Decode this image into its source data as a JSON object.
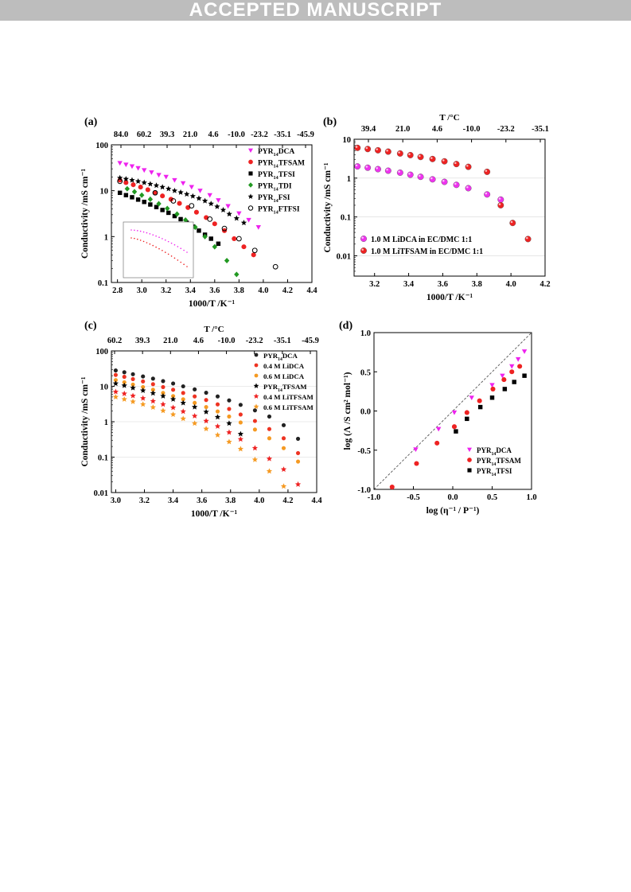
{
  "banner": "ACCEPTED MANUSCRIPT",
  "chart_data": [
    {
      "id": "a",
      "type": "scatter",
      "panel_label": "(a)",
      "xlabel": "1000/T /K⁻¹",
      "ylabel": "Conductivity /mS cm⁻¹",
      "xlim": [
        2.75,
        4.4
      ],
      "ylim": [
        0.1,
        100
      ],
      "yscale": "log",
      "x_ticks": [
        "2.8",
        "3.0",
        "3.2",
        "3.4",
        "3.6",
        "3.8",
        "4.0",
        "4.2",
        "4.4"
      ],
      "x_tick_values": [
        2.8,
        3.0,
        3.2,
        3.4,
        3.6,
        3.8,
        4.0,
        4.2,
        4.4
      ],
      "y_ticks": [
        "0.1",
        "1",
        "10",
        "100"
      ],
      "y_tick_values": [
        0.1,
        1,
        10,
        100
      ],
      "top_axis_label": "",
      "top_ticks": [
        "84.0",
        "60.2",
        "39.3",
        "21.0",
        "4.6",
        "-10.0",
        "-23.2",
        "-35.1",
        "-45.9"
      ],
      "legend_position": "top-right",
      "series": [
        {
          "name": "PYR14DCA",
          "label_prefix": "PYR",
          "label_sub": "14",
          "label_suffix": "DCA",
          "marker": "triangle",
          "color": "#ee22ee",
          "x": [
            2.82,
            2.87,
            2.92,
            2.97,
            3.02,
            3.08,
            3.14,
            3.2,
            3.27,
            3.34,
            3.41,
            3.48,
            3.56,
            3.63,
            3.71,
            3.8,
            3.88,
            3.96
          ],
          "y": [
            40,
            37,
            34,
            31,
            28,
            25,
            22,
            20,
            17,
            14.5,
            12,
            10,
            8,
            6.2,
            4.6,
            3.2,
            2.3,
            1.6
          ]
        },
        {
          "name": "PYR14TFSAM",
          "label_prefix": "PYR",
          "label_sub": "14",
          "label_suffix": "TFSAM",
          "marker": "circle",
          "color": "#ee2222",
          "x": [
            2.82,
            2.87,
            2.93,
            2.99,
            3.05,
            3.11,
            3.17,
            3.24,
            3.31,
            3.38,
            3.45,
            3.53,
            3.6,
            3.68,
            3.76,
            3.84,
            3.92
          ],
          "y": [
            17,
            15,
            13.5,
            12,
            10.5,
            9,
            7.7,
            6.5,
            5.3,
            4.3,
            3.4,
            2.6,
            1.9,
            1.35,
            0.9,
            0.6,
            0.4
          ]
        },
        {
          "name": "PYR14TFSI",
          "label_prefix": "PYR",
          "label_sub": "14",
          "label_suffix": "TFSI",
          "marker": "square",
          "color": "#000000",
          "x": [
            2.82,
            2.87,
            2.92,
            2.97,
            3.02,
            3.07,
            3.12,
            3.17,
            3.22,
            3.27,
            3.32,
            3.37,
            3.42,
            3.47,
            3.52,
            3.57,
            3.63
          ],
          "y": [
            9,
            8,
            7.2,
            6.4,
            5.7,
            5,
            4.4,
            3.8,
            3.3,
            2.8,
            2.4,
            2.0,
            1.65,
            1.35,
            1.1,
            0.9,
            0.7
          ]
        },
        {
          "name": "PYR14TDI",
          "label_prefix": "PYR",
          "label_sub": "14",
          "label_suffix": "TDI",
          "marker": "diamond",
          "color": "#229922",
          "x": [
            2.88,
            2.94,
            3.0,
            3.07,
            3.14,
            3.21,
            3.29,
            3.36,
            3.44,
            3.52,
            3.6,
            3.7,
            3.78
          ],
          "y": [
            11,
            9.5,
            8,
            6.5,
            5.2,
            4.1,
            3.1,
            2.3,
            1.6,
            1.0,
            0.6,
            0.3,
            0.15
          ]
        },
        {
          "name": "PYR14FSI",
          "label_prefix": "PYR",
          "label_sub": "14",
          "label_suffix": "FSI",
          "marker": "star",
          "color": "#000000",
          "x": [
            2.82,
            2.87,
            2.92,
            2.97,
            3.02,
            3.07,
            3.12,
            3.17,
            3.22,
            3.27,
            3.32,
            3.37,
            3.42,
            3.47,
            3.52,
            3.57,
            3.62,
            3.67,
            3.72,
            3.78,
            3.84
          ],
          "y": [
            19,
            18,
            17,
            16,
            15,
            14,
            13,
            12,
            11,
            10,
            9.2,
            8.4,
            7.6,
            6.8,
            6,
            5.2,
            4.5,
            3.8,
            3.1,
            2.5,
            2.0
          ]
        },
        {
          "name": "PYR14FTFSI",
          "label_prefix": "PYR",
          "label_sub": "14",
          "label_suffix": "FTFSI",
          "marker": "open-circle",
          "color": "#000000",
          "x": [
            2.82,
            3.11,
            3.26,
            3.41,
            3.56,
            3.68,
            3.8,
            3.93,
            4.1
          ],
          "y": [
            16,
            9,
            6,
            4.7,
            2.4,
            1.5,
            0.9,
            0.5,
            0.22
          ]
        }
      ]
    },
    {
      "id": "b",
      "type": "scatter",
      "panel_label": "(b)",
      "xlabel": "1000/T /K⁻¹",
      "ylabel": "Conductivity /mS cm⁻¹",
      "xlim": [
        3.08,
        4.2
      ],
      "ylim": [
        0.003,
        10
      ],
      "yscale": "log",
      "x_ticks": [
        "3.2",
        "3.4",
        "3.6",
        "3.8",
        "4.0",
        "4.2"
      ],
      "x_tick_values": [
        3.2,
        3.4,
        3.6,
        3.8,
        4.0,
        4.2
      ],
      "y_ticks": [
        "0.01",
        "0.1",
        "1",
        "10"
      ],
      "y_tick_values": [
        0.01,
        0.1,
        1,
        10
      ],
      "top_axis_label": "T /°C",
      "top_ticks": [
        "39.4",
        "21.0",
        "4.6",
        "-10.0",
        "-23.2",
        "-35.1"
      ],
      "legend_position": "bottom-left",
      "series": [
        {
          "name": "1.0 M LiDCA in EC/DMC 1:1",
          "marker": "sphere",
          "color": "#ee33ee",
          "x": [
            3.1,
            3.16,
            3.22,
            3.28,
            3.35,
            3.41,
            3.47,
            3.54,
            3.61,
            3.68,
            3.75,
            3.86,
            3.94
          ],
          "y": [
            2.0,
            1.85,
            1.7,
            1.55,
            1.38,
            1.22,
            1.08,
            0.93,
            0.8,
            0.67,
            0.55,
            0.38,
            0.28
          ]
        },
        {
          "name": "1.0 M LiTFSAM in EC/DMC 1:1",
          "marker": "sphere",
          "color": "#ee2222",
          "x": [
            3.1,
            3.16,
            3.22,
            3.28,
            3.35,
            3.41,
            3.47,
            3.54,
            3.61,
            3.68,
            3.75,
            3.86,
            3.94,
            4.01,
            4.1
          ],
          "y": [
            6.0,
            5.6,
            5.2,
            4.8,
            4.3,
            3.9,
            3.5,
            3.1,
            2.7,
            2.3,
            1.95,
            1.45,
            0.2,
            0.07,
            0.027
          ]
        }
      ]
    },
    {
      "id": "c",
      "type": "scatter",
      "panel_label": "(c)",
      "xlabel": "1000/T /K⁻¹",
      "ylabel": "Conductivity /mS cm⁻¹",
      "xlim": [
        2.97,
        4.4
      ],
      "ylim": [
        0.01,
        100
      ],
      "yscale": "log",
      "x_ticks": [
        "3.0",
        "3.2",
        "3.4",
        "3.6",
        "3.8",
        "4.0",
        "4.2",
        "4.4"
      ],
      "x_tick_values": [
        3.0,
        3.2,
        3.4,
        3.6,
        3.8,
        4.0,
        4.2,
        4.4
      ],
      "y_ticks": [
        "0.01",
        "0.1",
        "1",
        "10",
        "100"
      ],
      "y_tick_values": [
        0.01,
        0.1,
        1,
        10,
        100
      ],
      "top_axis_label": "T /°C",
      "top_ticks": [
        "60.2",
        "39.3",
        "21.0",
        "4.6",
        "-10.0",
        "-23.2",
        "-35.1",
        "-45.9"
      ],
      "legend_position": "top-right",
      "series": [
        {
          "name": "PYR14DCA",
          "label_prefix": "PYR",
          "label_sub": "14",
          "label_suffix": "DCA",
          "marker": "dot",
          "color": "#222222",
          "x": [
            3.0,
            3.06,
            3.12,
            3.19,
            3.26,
            3.33,
            3.4,
            3.47,
            3.55,
            3.63,
            3.71,
            3.79,
            3.87,
            3.97,
            4.07,
            4.17,
            4.27
          ],
          "y": [
            28,
            25,
            22,
            19,
            16.5,
            14,
            12,
            10,
            8.2,
            6.6,
            5.2,
            4,
            3,
            2.1,
            1.4,
            0.8,
            0.33
          ]
        },
        {
          "name": "0.4 M LiDCA",
          "marker": "dot",
          "color": "#ee3322",
          "x": [
            3.0,
            3.06,
            3.12,
            3.19,
            3.26,
            3.33,
            3.4,
            3.47,
            3.55,
            3.63,
            3.71,
            3.79,
            3.87,
            3.97,
            4.07,
            4.17,
            4.27
          ],
          "y": [
            21,
            18.5,
            16,
            13.8,
            11.5,
            9.5,
            8,
            6.5,
            5.2,
            4.1,
            3.1,
            2.3,
            1.6,
            1.05,
            0.62,
            0.34,
            0.13
          ]
        },
        {
          "name": "0.6 M LiDCA",
          "marker": "dot",
          "color": "#f59a22",
          "x": [
            3.0,
            3.06,
            3.12,
            3.19,
            3.26,
            3.33,
            3.4,
            3.47,
            3.55,
            3.63,
            3.71,
            3.79,
            3.87,
            3.97,
            4.07,
            4.17,
            4.27
          ],
          "y": [
            15,
            13,
            11.2,
            9.5,
            8,
            6.5,
            5.3,
            4.3,
            3.4,
            2.6,
            1.95,
            1.4,
            0.95,
            0.6,
            0.34,
            0.18,
            0.075
          ]
        },
        {
          "name": "PYR14TFSAM",
          "label_prefix": "PYR",
          "label_sub": "14",
          "label_suffix": "TFSAM",
          "marker": "star",
          "color": "#000000",
          "x": [
            3.0,
            3.06,
            3.12,
            3.19,
            3.26,
            3.33,
            3.4,
            3.47,
            3.55,
            3.63,
            3.71,
            3.79,
            3.87
          ],
          "y": [
            12,
            10.5,
            9,
            7.6,
            6.4,
            5.3,
            4.3,
            3.4,
            2.6,
            1.9,
            1.35,
            0.9,
            0.45
          ]
        },
        {
          "name": "0.4 M LiTFSAM",
          "marker": "star",
          "color": "#ee2222",
          "x": [
            3.0,
            3.06,
            3.12,
            3.19,
            3.26,
            3.33,
            3.4,
            3.47,
            3.55,
            3.63,
            3.71,
            3.79,
            3.87,
            3.97,
            4.07,
            4.17,
            4.27
          ],
          "y": [
            7,
            6.2,
            5.4,
            4.6,
            3.8,
            3.1,
            2.5,
            1.95,
            1.45,
            1.05,
            0.74,
            0.5,
            0.32,
            0.18,
            0.09,
            0.045,
            0.017
          ]
        },
        {
          "name": "0.6 M LiTFSAM",
          "marker": "star",
          "color": "#f59a22",
          "x": [
            3.0,
            3.06,
            3.12,
            3.19,
            3.26,
            3.33,
            3.4,
            3.47,
            3.55,
            3.63,
            3.71,
            3.79,
            3.87,
            3.97,
            4.07,
            4.17
          ],
          "y": [
            5,
            4.3,
            3.7,
            3.1,
            2.55,
            2.05,
            1.6,
            1.22,
            0.9,
            0.63,
            0.42,
            0.27,
            0.17,
            0.085,
            0.04,
            0.015
          ]
        }
      ]
    },
    {
      "id": "d",
      "type": "scatter",
      "panel_label": "(d)",
      "xlabel": "log (η⁻¹ / P⁻¹)",
      "ylabel": "log (Λ /S cm² mol⁻¹)",
      "xlim": [
        -1.0,
        1.0
      ],
      "ylim": [
        -1.0,
        1.0
      ],
      "yscale": "linear",
      "x_ticks": [
        "-1.0",
        "-0.5",
        "0.0",
        "0.5",
        "1.0"
      ],
      "x_tick_values": [
        -1.0,
        -0.5,
        0.0,
        0.5,
        1.0
      ],
      "y_ticks": [
        "-1.0",
        "-0.5",
        "0.0",
        "0.5",
        "1.0"
      ],
      "y_tick_values": [
        -1.0,
        -0.5,
        0.0,
        0.5,
        1.0
      ],
      "reference_line": "dashed diagonal",
      "legend_position": "bottom-right",
      "series": [
        {
          "name": "PYR14DCA",
          "label_prefix": "PYR",
          "label_sub": "14",
          "label_suffix": "DCA",
          "marker": "triangle",
          "color": "#ee22ee",
          "x": [
            -0.47,
            -0.18,
            0.02,
            0.24,
            0.5,
            0.63,
            0.75,
            0.83,
            0.91
          ],
          "y": [
            -0.49,
            -0.23,
            -0.02,
            0.17,
            0.33,
            0.45,
            0.57,
            0.66,
            0.76
          ]
        },
        {
          "name": "PYR14TFSAM",
          "label_prefix": "PYR",
          "label_sub": "14",
          "label_suffix": "TFSAM",
          "marker": "circle",
          "color": "#ee2222",
          "x": [
            -0.77,
            -0.46,
            -0.2,
            0.02,
            0.18,
            0.34,
            0.51,
            0.65,
            0.75,
            0.85
          ],
          "y": [
            -0.97,
            -0.67,
            -0.41,
            -0.2,
            -0.02,
            0.13,
            0.28,
            0.4,
            0.5,
            0.57
          ]
        },
        {
          "name": "PYR14TFSI",
          "label_prefix": "PYR",
          "label_sub": "14",
          "label_suffix": "TFSI",
          "marker": "square",
          "color": "#000000",
          "x": [
            0.04,
            0.18,
            0.35,
            0.5,
            0.66,
            0.78,
            0.91
          ],
          "y": [
            -0.26,
            -0.1,
            0.05,
            0.17,
            0.28,
            0.37,
            0.45
          ]
        }
      ]
    }
  ]
}
